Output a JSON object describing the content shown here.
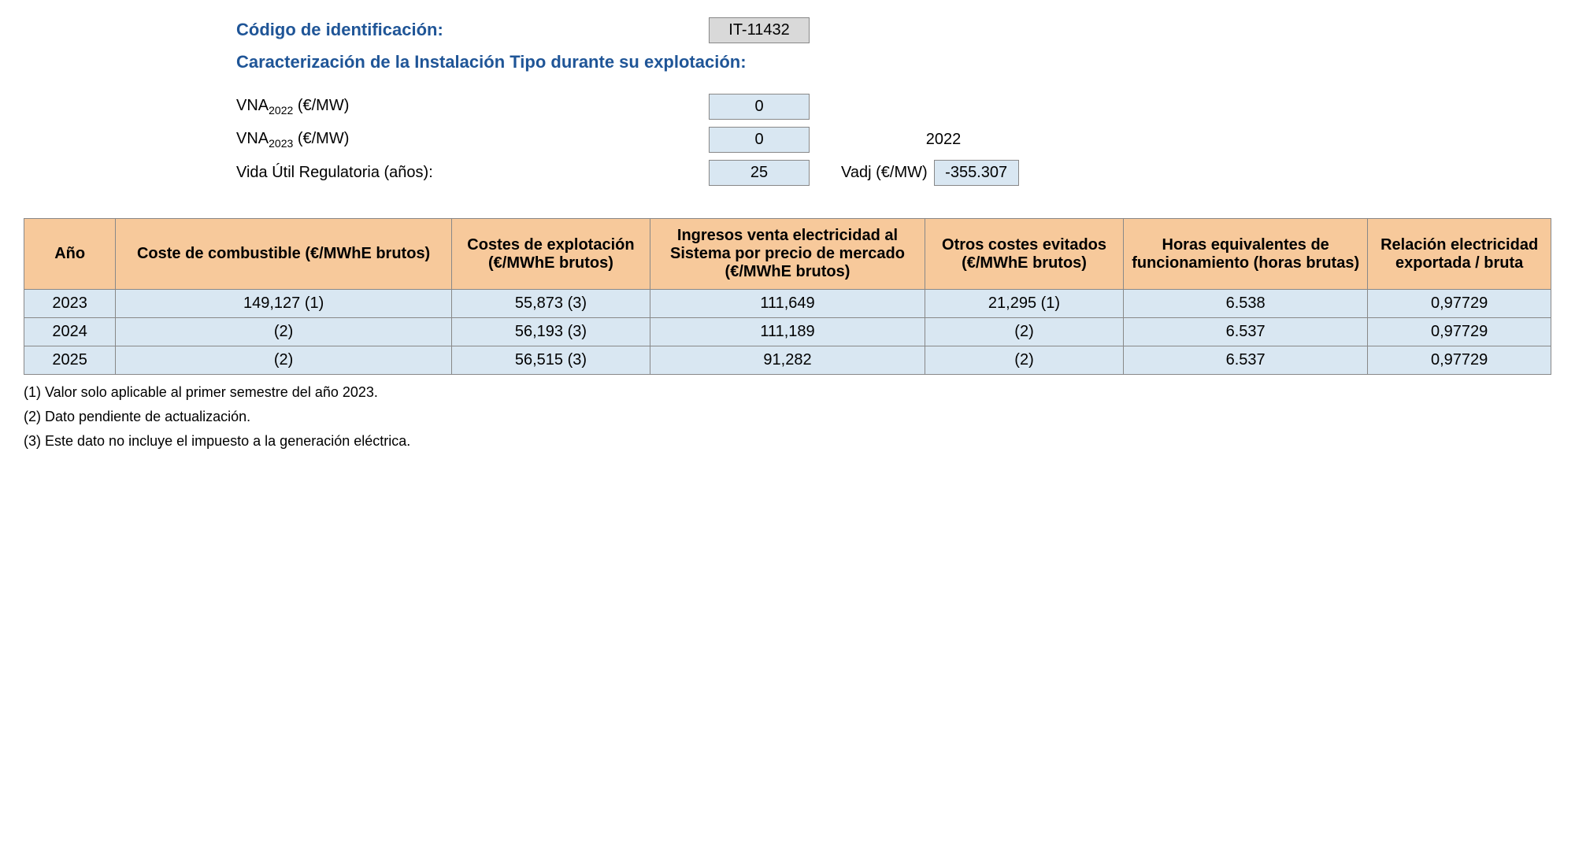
{
  "header": {
    "code_label": "Código de identificación:",
    "code_value": "IT-11432",
    "section_title": "Caracterización de la Instalación Tipo durante su explotación:"
  },
  "params": {
    "vna2022_label_prefix": "VNA",
    "vna2022_sub": "2022",
    "vna2022_unit": " (€/MW)",
    "vna2022_value": "0",
    "vna2023_label_prefix": "VNA",
    "vna2023_sub": "2023",
    "vna2023_unit": " (€/MW)",
    "vna2023_value": "0",
    "vida_label": "Vida Útil Regulatoria (años):",
    "vida_value": "25",
    "year_ref": "2022",
    "vadj_label": "Vadj (€/MW)",
    "vadj_value": "-355.307"
  },
  "table": {
    "columns": [
      "Año",
      "Coste de combustible (€/MWhE brutos)",
      "Costes de explotación (€/MWhE brutos)",
      "Ingresos venta electricidad al Sistema por precio de mercado (€/MWhE brutos)",
      "Otros costes evitados (€/MWhE brutos)",
      "Horas equivalentes de funcionamiento (horas brutas)",
      "Relación electricidad exportada / bruta"
    ],
    "rows": [
      [
        "2023",
        "149,127 (1)",
        "55,873 (3)",
        "111,649",
        "21,295 (1)",
        "6.538",
        "0,97729"
      ],
      [
        "2024",
        "(2)",
        "56,193 (3)",
        "111,189",
        "(2)",
        "6.537",
        "0,97729"
      ],
      [
        "2025",
        "(2)",
        "56,515 (3)",
        "91,282",
        "(2)",
        "6.537",
        "0,97729"
      ]
    ],
    "col_widths": [
      "6%",
      "22%",
      "13%",
      "18%",
      "13%",
      "16%",
      "12%"
    ]
  },
  "footnotes": [
    "(1) Valor solo aplicable al primer semestre del año 2023.",
    "(2) Dato pendiente de actualización.",
    "(3) Este dato no incluye el impuesto a la generación eléctrica."
  ],
  "colors": {
    "heading": "#1f5597",
    "th_bg": "#f7c99b",
    "td_bg": "#d9e7f2",
    "gray_bg": "#d9d9d9",
    "border": "#888888"
  }
}
